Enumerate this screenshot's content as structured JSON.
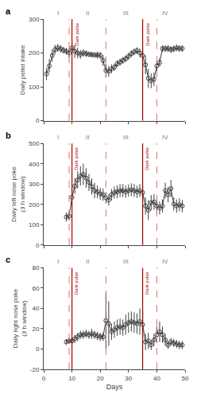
{
  "chart_data": [
    {
      "type": "line",
      "title": "a",
      "ylabel": "Daily pellet intake",
      "x": [
        1,
        2,
        3,
        4,
        5,
        6,
        7,
        8,
        9,
        10,
        11,
        12,
        13,
        14,
        15,
        16,
        17,
        18,
        19,
        20,
        21,
        22,
        23,
        24,
        25,
        26,
        27,
        28,
        29,
        30,
        31,
        32,
        33,
        34,
        35,
        36,
        37,
        38,
        39,
        40,
        41,
        42,
        43,
        44,
        45,
        46,
        47,
        48,
        49
      ],
      "values": [
        138,
        162,
        192,
        210,
        215,
        212,
        208,
        205,
        200,
        215,
        205,
        200,
        196,
        200,
        198,
        196,
        195,
        194,
        194,
        193,
        178,
        148,
        146,
        153,
        158,
        168,
        173,
        178,
        183,
        190,
        198,
        203,
        207,
        200,
        192,
        165,
        125,
        118,
        122,
        162,
        172,
        213,
        213,
        213,
        210,
        212,
        215,
        213,
        213
      ],
      "errors": [
        18,
        20,
        18,
        14,
        12,
        11,
        10,
        10,
        14,
        22,
        20,
        16,
        13,
        11,
        10,
        8,
        8,
        8,
        10,
        10,
        16,
        20,
        16,
        13,
        10,
        10,
        10,
        10,
        10,
        10,
        10,
        10,
        10,
        13,
        22,
        28,
        28,
        22,
        20,
        16,
        13,
        10,
        10,
        10,
        10,
        10,
        10,
        10,
        10
      ],
      "color": "#404040",
      "marker": "circle-open",
      "line_style": "solid",
      "xlim": [
        0,
        50
      ],
      "xticks": [
        0,
        10,
        20,
        30,
        40,
        50
      ],
      "ylim": [
        0,
        300
      ],
      "yticks": [
        0,
        100,
        200,
        300
      ],
      "grid": false,
      "tick_labels": "y",
      "vlines": [
        {
          "x": 9,
          "line_style": "dashed",
          "color": "#d87070"
        },
        {
          "x": 22,
          "line_style": "dashed",
          "color": "#d87070"
        },
        {
          "x": 40,
          "line_style": "dashed",
          "color": "#d87070"
        },
        {
          "x": 10,
          "line_style": "solid",
          "color": "#aa0000",
          "label": "Dark pulse"
        },
        {
          "x": 35,
          "line_style": "solid",
          "color": "#aa0000",
          "label": "Dark pulse"
        }
      ],
      "annotations": [
        {
          "text": "I",
          "x": 5,
          "color": "#808080"
        },
        {
          "text": "II",
          "x": 15.5,
          "color": "#808080"
        },
        {
          "text": "III",
          "x": 29,
          "color": "#808080"
        },
        {
          "text": "IV",
          "x": 43,
          "color": "#808080"
        }
      ]
    },
    {
      "type": "line",
      "title": "b",
      "ylabel": "Daily left nose poke\n(3 h window)",
      "x": [
        8,
        9,
        10,
        11,
        12,
        13,
        14,
        15,
        16,
        17,
        18,
        19,
        20,
        21,
        22,
        23,
        24,
        25,
        26,
        27,
        28,
        29,
        30,
        31,
        32,
        33,
        34,
        35,
        36,
        37,
        38,
        39,
        40,
        41,
        42,
        43,
        44,
        45,
        46,
        47,
        48,
        49
      ],
      "values": [
        138,
        142,
        235,
        290,
        320,
        340,
        348,
        330,
        308,
        288,
        268,
        262,
        252,
        248,
        232,
        222,
        248,
        258,
        262,
        268,
        268,
        262,
        268,
        272,
        268,
        262,
        268,
        258,
        192,
        172,
        208,
        212,
        192,
        182,
        192,
        268,
        248,
        278,
        202,
        192,
        198,
        192
      ],
      "errors": [
        22,
        22,
        38,
        38,
        42,
        48,
        52,
        48,
        42,
        40,
        38,
        32,
        30,
        30,
        28,
        28,
        28,
        30,
        32,
        32,
        32,
        30,
        30,
        32,
        32,
        30,
        32,
        32,
        42,
        48,
        38,
        38,
        38,
        32,
        32,
        38,
        38,
        42,
        32,
        32,
        32,
        30
      ],
      "color": "#404040",
      "marker": "circle-open",
      "line_style": "solid",
      "xlim": [
        0,
        50
      ],
      "xticks": [
        0,
        10,
        20,
        30,
        40,
        50
      ],
      "ylim": [
        0,
        500
      ],
      "yticks": [
        0,
        100,
        200,
        300,
        400,
        500
      ],
      "grid": false,
      "tick_labels": "y",
      "vlines": [
        {
          "x": 9,
          "line_style": "dashed",
          "color": "#d87070"
        },
        {
          "x": 22,
          "line_style": "dashed",
          "color": "#d87070"
        },
        {
          "x": 40,
          "line_style": "dashed",
          "color": "#d87070"
        },
        {
          "x": 10,
          "line_style": "solid",
          "color": "#aa0000",
          "label": "Dark pulse"
        },
        {
          "x": 35,
          "line_style": "solid",
          "color": "#aa0000",
          "label": "Dark pulse"
        }
      ],
      "annotations": [
        {
          "text": "I",
          "x": 5,
          "color": "#808080"
        },
        {
          "text": "II",
          "x": 15.5,
          "color": "#808080"
        },
        {
          "text": "III",
          "x": 29,
          "color": "#808080"
        },
        {
          "text": "IV",
          "x": 43,
          "color": "#808080"
        }
      ]
    },
    {
      "type": "line",
      "title": "c",
      "ylabel": "Daily right nose poke\n(3 h window)",
      "xlabel": "Days",
      "x": [
        8,
        9,
        10,
        11,
        12,
        13,
        14,
        15,
        16,
        17,
        18,
        19,
        20,
        21,
        22,
        23,
        24,
        25,
        26,
        27,
        28,
        29,
        30,
        31,
        32,
        33,
        34,
        35,
        36,
        37,
        38,
        39,
        40,
        41,
        42,
        43,
        44,
        45,
        46,
        47,
        48,
        49
      ],
      "values": [
        7,
        8,
        8,
        10,
        12,
        14,
        14,
        15,
        14,
        15,
        14,
        13,
        12,
        12,
        28,
        25,
        17,
        19,
        21,
        22,
        21,
        24,
        26,
        27,
        26,
        25,
        27,
        24,
        7,
        8,
        4,
        9,
        14,
        17,
        14,
        9,
        4,
        7,
        6,
        5,
        4,
        4
      ],
      "errors": [
        3,
        3,
        3,
        4,
        4,
        4,
        4,
        4,
        4,
        5,
        4,
        4,
        4,
        4,
        28,
        22,
        8,
        8,
        8,
        8,
        8,
        10,
        10,
        10,
        10,
        10,
        13,
        13,
        8,
        8,
        5,
        6,
        8,
        10,
        8,
        6,
        4,
        4,
        4,
        4,
        4,
        4
      ],
      "color": "#404040",
      "marker": "circle-open",
      "line_style": "solid",
      "xlim": [
        0,
        50
      ],
      "xticks": [
        0,
        10,
        20,
        30,
        40,
        50
      ],
      "ylim": [
        -20,
        80
      ],
      "yticks": [
        -20,
        0,
        20,
        40,
        60,
        80
      ],
      "grid": false,
      "vlines": [
        {
          "x": 9,
          "line_style": "dashed",
          "color": "#d87070"
        },
        {
          "x": 22,
          "line_style": "dashed",
          "color": "#d87070"
        },
        {
          "x": 40,
          "line_style": "dashed",
          "color": "#d87070"
        },
        {
          "x": 10,
          "line_style": "solid",
          "color": "#aa0000",
          "label": "Dark pulse"
        },
        {
          "x": 35,
          "line_style": "solid",
          "color": "#aa0000",
          "label": "Dark pulse"
        }
      ],
      "annotations": [
        {
          "text": "I",
          "x": 5,
          "color": "#808080"
        },
        {
          "text": "II",
          "x": 15.5,
          "color": "#808080"
        },
        {
          "text": "III",
          "x": 29,
          "color": "#808080"
        },
        {
          "text": "IV",
          "x": 43,
          "color": "#808080"
        }
      ]
    }
  ]
}
